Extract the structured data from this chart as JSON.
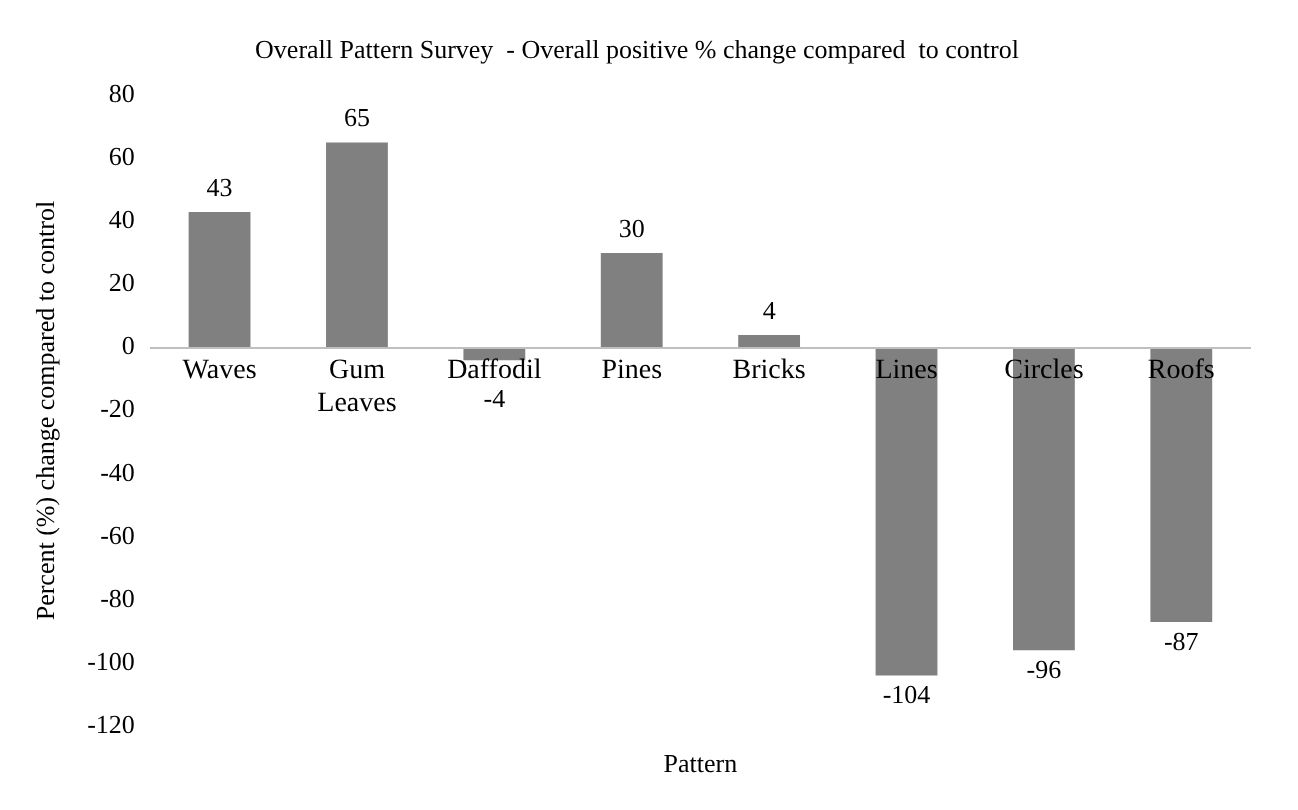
{
  "chart_data": {
    "type": "bar",
    "title": "Overall Pattern Survey  - Overall positive % change compared  to control",
    "xlabel": "Pattern",
    "ylabel": "Percent (%) change compared to control",
    "categories": [
      "Waves",
      "Gum Leaves",
      "Daffodil",
      "Pines",
      "Bricks",
      "Lines",
      "Circles",
      "Roofs"
    ],
    "values": [
      43,
      65,
      -4,
      30,
      4,
      -104,
      -96,
      -87
    ],
    "color": "#808080",
    "ylim": [
      -120,
      80
    ],
    "yticks": [
      -120,
      -100,
      -80,
      -60,
      -40,
      -20,
      0,
      20,
      40,
      60,
      80
    ],
    "grid": false,
    "legend": false,
    "data_labels": true
  }
}
